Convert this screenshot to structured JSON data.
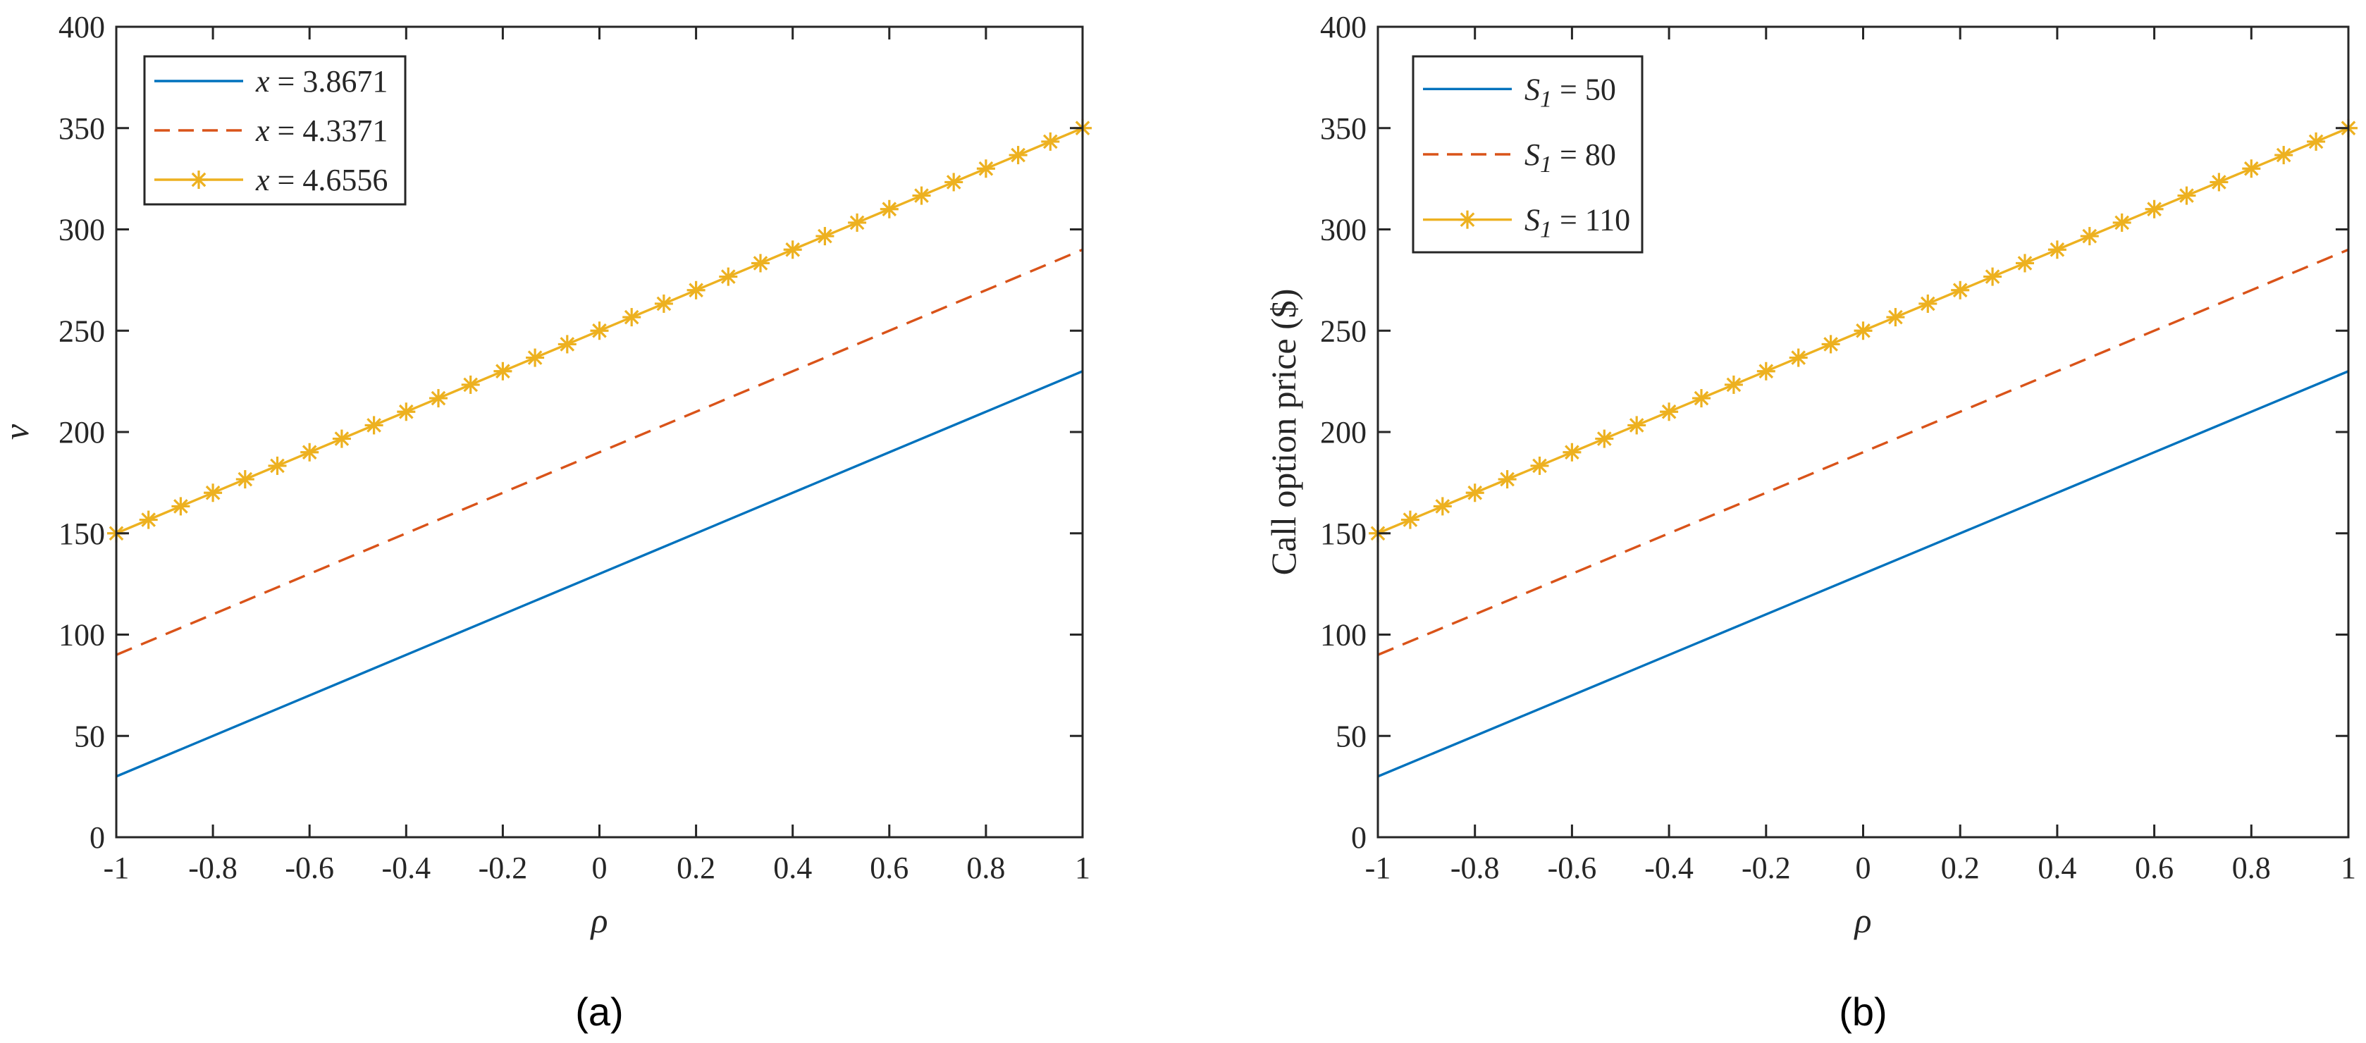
{
  "chart_data": [
    {
      "type": "line",
      "caption": "(a)",
      "title": "",
      "xlabel": "ρ",
      "ylabel": "ν",
      "xlim": [
        -1,
        1
      ],
      "ylim": [
        0,
        400
      ],
      "xticks": [
        -1,
        -0.8,
        -0.6,
        -0.4,
        -0.2,
        0,
        0.2,
        0.4,
        0.6,
        0.8,
        1
      ],
      "xtick_labels": [
        "-1",
        "-0.8",
        "-0.6",
        "-0.4",
        "-0.2",
        "0",
        "0.2",
        "0.4",
        "0.6",
        "0.8",
        "1"
      ],
      "yticks": [
        0,
        50,
        100,
        150,
        200,
        250,
        300,
        350,
        400
      ],
      "ytick_labels": [
        "0",
        "50",
        "100",
        "150",
        "200",
        "250",
        "300",
        "350",
        "400"
      ],
      "grid": false,
      "legend_position": "top-left",
      "series": [
        {
          "name": "x = 3.8671",
          "legend_var": "x",
          "legend_sub": "",
          "legend_value": " = 3.8671",
          "x": [
            -1,
            1
          ],
          "y": [
            30,
            230
          ],
          "color": "#0072BD",
          "style": "solid",
          "marker": "none"
        },
        {
          "name": "x = 4.3371",
          "legend_var": "x",
          "legend_sub": "",
          "legend_value": " = 4.3371",
          "x": [
            -1,
            1
          ],
          "y": [
            90,
            290
          ],
          "color": "#D95319",
          "style": "dashed",
          "marker": "none"
        },
        {
          "name": "x = 4.6556",
          "legend_var": "x",
          "legend_sub": "",
          "legend_value": " = 4.6556",
          "x": [
            -1,
            1
          ],
          "y": [
            150,
            350
          ],
          "color": "#EDB120",
          "style": "solid",
          "marker": "asterisk",
          "marker_count": 31
        }
      ]
    },
    {
      "type": "line",
      "caption": "(b)",
      "title": "",
      "xlabel": "ρ",
      "ylabel": "Call option price ($)",
      "xlim": [
        -1,
        1
      ],
      "ylim": [
        0,
        400
      ],
      "xticks": [
        -1,
        -0.8,
        -0.6,
        -0.4,
        -0.2,
        0,
        0.2,
        0.4,
        0.6,
        0.8,
        1
      ],
      "xtick_labels": [
        "-1",
        "-0.8",
        "-0.6",
        "-0.4",
        "-0.2",
        "0",
        "0.2",
        "0.4",
        "0.6",
        "0.8",
        "1"
      ],
      "yticks": [
        0,
        50,
        100,
        150,
        200,
        250,
        300,
        350,
        400
      ],
      "ytick_labels": [
        "0",
        "50",
        "100",
        "150",
        "200",
        "250",
        "300",
        "350",
        "400"
      ],
      "grid": false,
      "legend_position": "top-left",
      "series": [
        {
          "name": "S1 = 50",
          "legend_var": "S",
          "legend_sub": "1",
          "legend_value": " = 50",
          "x": [
            -1,
            1
          ],
          "y": [
            30,
            230
          ],
          "color": "#0072BD",
          "style": "solid",
          "marker": "none"
        },
        {
          "name": "S1 = 80",
          "legend_var": "S",
          "legend_sub": "1",
          "legend_value": " = 80",
          "x": [
            -1,
            1
          ],
          "y": [
            90,
            290
          ],
          "color": "#D95319",
          "style": "dashed",
          "marker": "none"
        },
        {
          "name": "S1 = 110",
          "legend_var": "S",
          "legend_sub": "1",
          "legend_value": " = 110",
          "x": [
            -1,
            1
          ],
          "y": [
            150,
            350
          ],
          "color": "#EDB120",
          "style": "solid",
          "marker": "asterisk",
          "marker_count": 31
        }
      ]
    }
  ]
}
